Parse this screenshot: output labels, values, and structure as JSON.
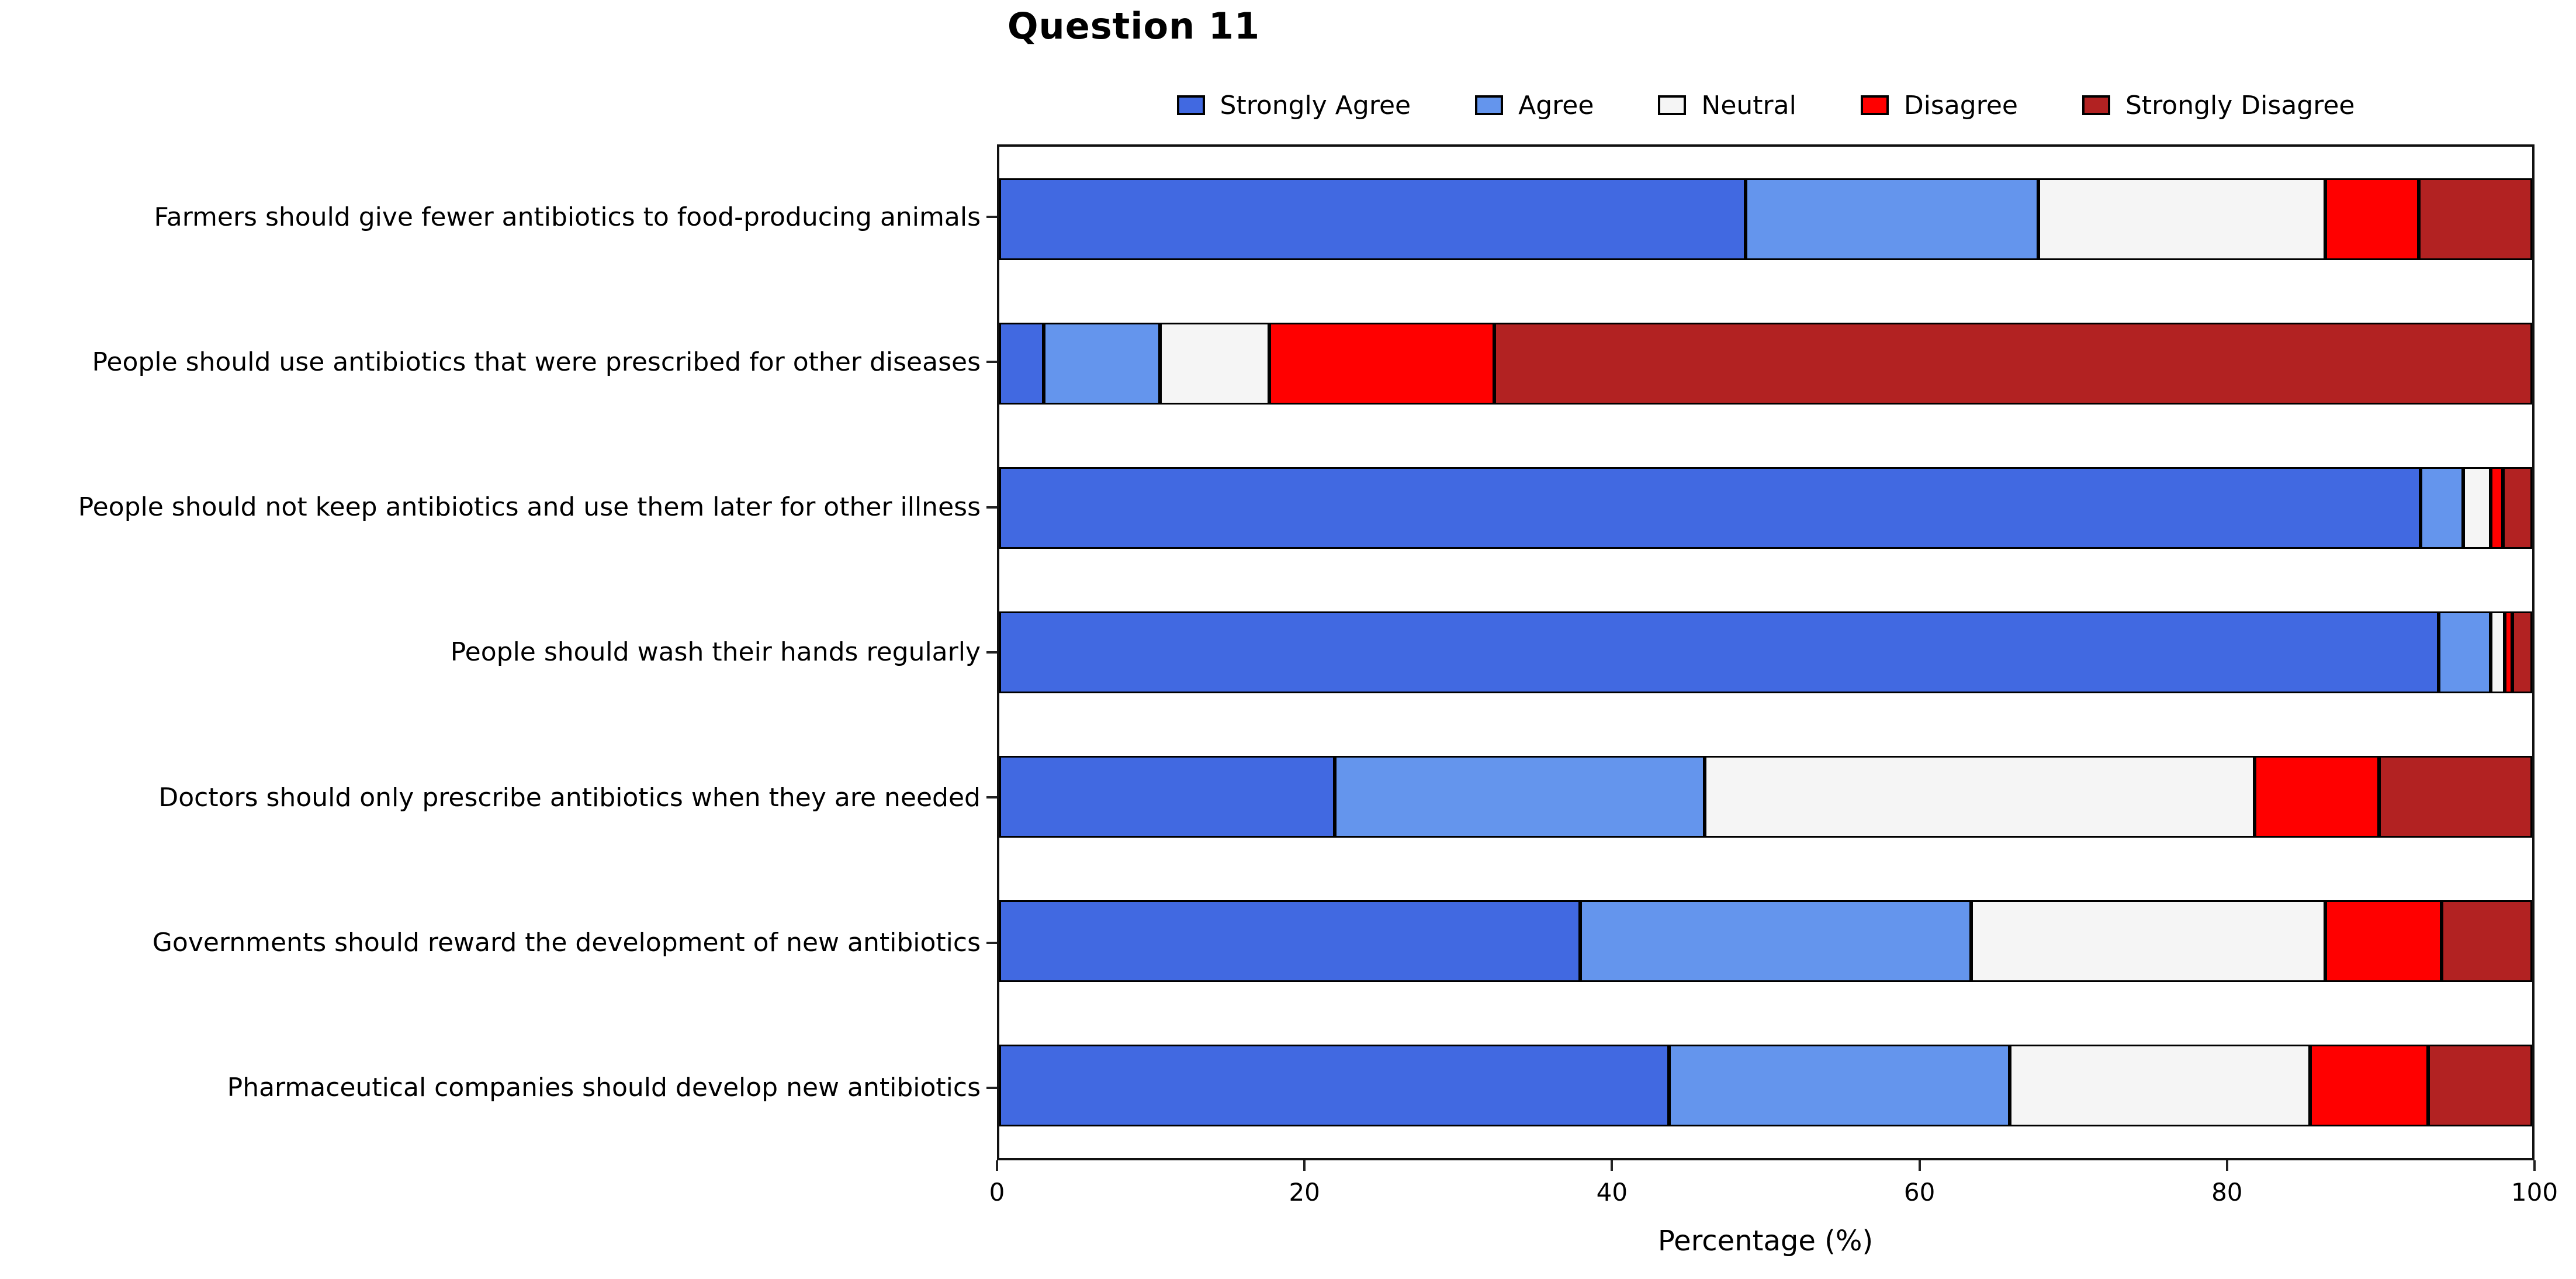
{
  "title": "Question 11",
  "xlabel": "Percentage (%)",
  "chart_data": {
    "type": "stacked-barh",
    "title": "Question 11",
    "xlabel": "Percentage (%)",
    "ylabel": "",
    "xlim": [
      0,
      100
    ],
    "x_ticks": [
      0,
      20,
      40,
      60,
      80,
      100
    ],
    "grid": false,
    "legend_position": "top-center",
    "bar_edge_color": "#000000",
    "categories": [
      "Farmers should give fewer antibiotics to food-producing animals",
      "People should use antibiotics that were prescribed for other diseases",
      "People should not keep antibiotics and use them later for other illness",
      "People should wash their hands regularly",
      "Doctors should only prescribe antibiotics when they are needed",
      "Governments should reward the development of new antibiotics",
      "Pharmaceutical companies should develop new antibiotics"
    ],
    "series": [
      {
        "name": "Strongly Agree",
        "color": "#4169E1",
        "values": [
          48.7,
          2.9,
          92.7,
          93.9,
          21.9,
          37.9,
          43.7
        ]
      },
      {
        "name": "Agree",
        "color": "#6495ED",
        "values": [
          19.1,
          7.6,
          2.8,
          3.4,
          24.1,
          25.5,
          22.2
        ]
      },
      {
        "name": "Neutral",
        "color": "#F5F5F5",
        "values": [
          18.7,
          7.1,
          1.8,
          0.9,
          35.9,
          23.1,
          19.6
        ]
      },
      {
        "name": "Disagree",
        "color": "#FF0000",
        "values": [
          6.1,
          14.7,
          0.8,
          0.5,
          8.1,
          7.6,
          7.7
        ]
      },
      {
        "name": "Strongly Disagree",
        "color": "#B22222",
        "values": [
          7.4,
          67.7,
          1.9,
          1.3,
          10.0,
          5.9,
          6.8
        ]
      }
    ]
  }
}
